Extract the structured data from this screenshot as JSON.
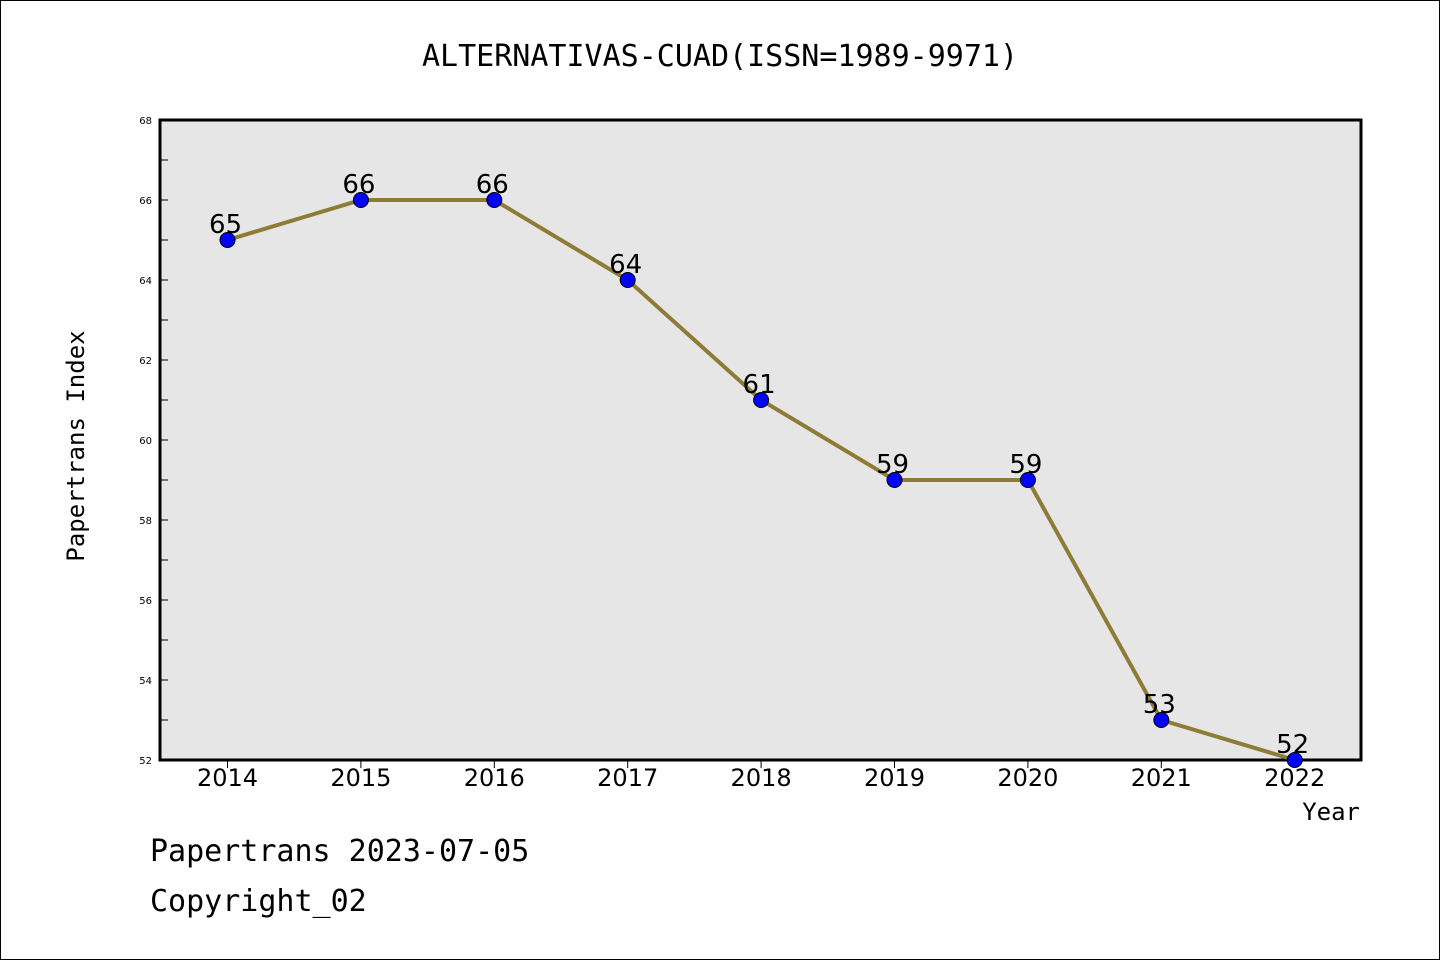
{
  "chart_data": {
    "type": "line",
    "title": "ALTERNATIVAS-CUAD(ISSN=1989-9971)",
    "xlabel": "Year",
    "ylabel": "Papertrans Index",
    "categories": [
      "2014",
      "2015",
      "2016",
      "2017",
      "2018",
      "2019",
      "2020",
      "2021",
      "2022"
    ],
    "values": [
      65,
      66,
      66,
      64,
      61,
      59,
      59,
      53,
      52
    ],
    "ylim": [
      52,
      68
    ],
    "yticks": [
      "52",
      "54",
      "56",
      "58",
      "60",
      "62",
      "64",
      "66",
      "68"
    ],
    "grid": false,
    "line_color": "#8e7b35",
    "marker_color": "#0000ff",
    "plot_background": "#e6e6e6"
  },
  "footer": {
    "line1": "Papertrans 2023-07-05",
    "line2": "Copyright_02"
  }
}
